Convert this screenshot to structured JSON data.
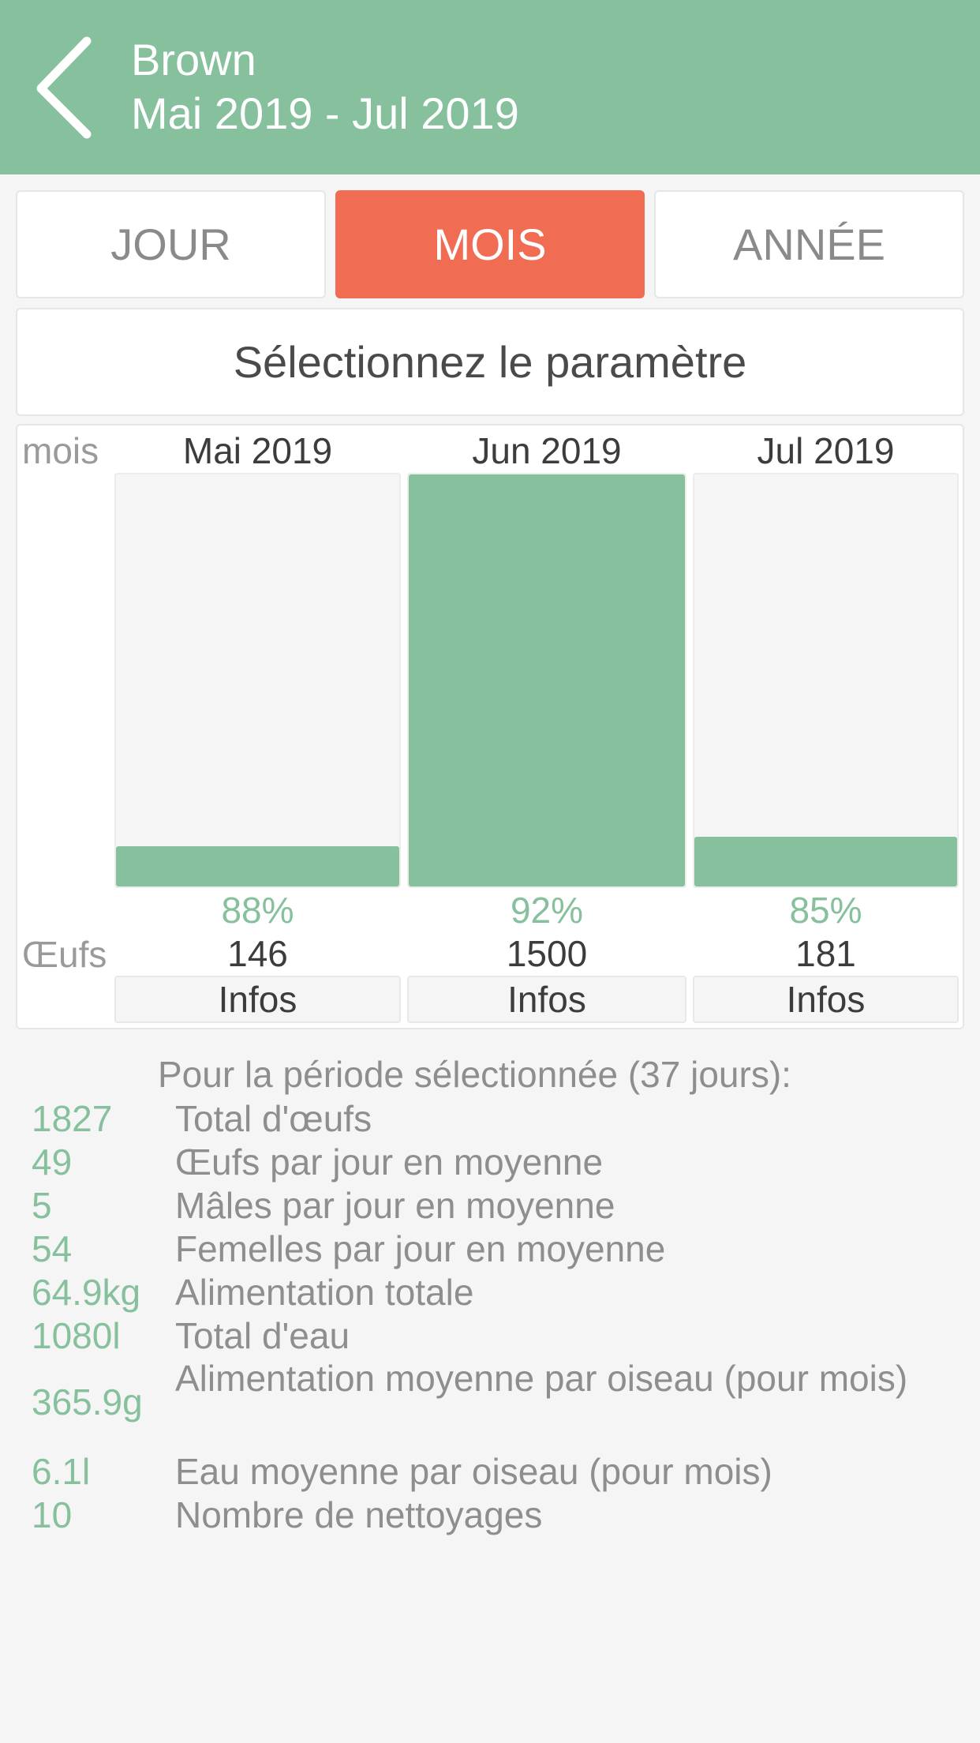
{
  "header": {
    "title": "Brown",
    "subtitle": "Mai 2019 - Jul 2019"
  },
  "tabs": [
    {
      "label": "JOUR",
      "active": false
    },
    {
      "label": "MOIS",
      "active": true
    },
    {
      "label": "ANNÉE",
      "active": false
    }
  ],
  "parameter_selector": {
    "label": "Sélectionnez le paramètre"
  },
  "chart": {
    "unit_label": "mois",
    "eggs_label": "Œufs",
    "infos_label": "Infos",
    "columns": [
      {
        "period": "Mai 2019",
        "percent": "88%",
        "eggs": "146",
        "fill_fraction": 0.097
      },
      {
        "period": "Jun 2019",
        "percent": "92%",
        "eggs": "1500",
        "fill_fraction": 1.0
      },
      {
        "period": "Jul 2019",
        "percent": "85%",
        "eggs": "181",
        "fill_fraction": 0.121
      }
    ]
  },
  "summary": {
    "title": "Pour la période sélectionnée (37 jours):",
    "stats": [
      {
        "value": "1827",
        "label": "Total d'œufs"
      },
      {
        "value": "49",
        "label": "Œufs par jour en moyenne"
      },
      {
        "value": "5",
        "label": "Mâles par jour en moyenne"
      },
      {
        "value": "54",
        "label": "Femelles par jour en moyenne"
      },
      {
        "value": "64.9kg",
        "label": "Alimentation totale"
      },
      {
        "value": "1080l",
        "label": "Total d'eau"
      },
      {
        "value": "365.9g",
        "label": "Alimentation moyenne par oiseau (pour mois)"
      },
      {
        "value": "6.1l",
        "label": "Eau moyenne par oiseau (pour mois)"
      },
      {
        "value": "10",
        "label": "Nombre de nettoyages"
      }
    ]
  },
  "colors": {
    "accent_green": "#86c09d",
    "accent_orange": "#f06c53",
    "background": "#f5f5f5"
  },
  "icons": {
    "back": "chevron-left-icon"
  }
}
